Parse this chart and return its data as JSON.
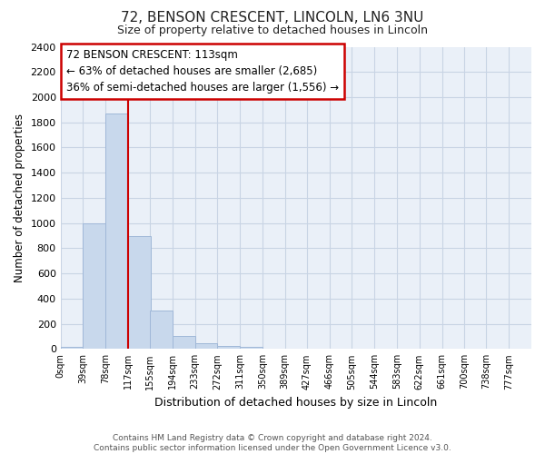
{
  "title": "72, BENSON CRESCENT, LINCOLN, LN6 3NU",
  "subtitle": "Size of property relative to detached houses in Lincoln",
  "xlabel": "Distribution of detached houses by size in Lincoln",
  "ylabel": "Number of detached properties",
  "bin_edges": [
    0,
    39,
    78,
    117,
    155,
    194,
    233,
    272,
    311,
    350,
    389,
    427,
    466,
    505,
    544,
    583,
    622,
    661,
    700,
    738,
    777
  ],
  "bar_heights": [
    20,
    1000,
    1870,
    900,
    305,
    100,
    45,
    25,
    20,
    0,
    0,
    0,
    0,
    0,
    0,
    0,
    0,
    0,
    0,
    0
  ],
  "bar_color": "#c8d8ec",
  "bar_edge_color": "#a0b8d8",
  "grid_color": "#c8d4e4",
  "vline_x": 117,
  "vline_color": "#cc0000",
  "annotation_text": "72 BENSON CRESCENT: 113sqm\n← 63% of detached houses are smaller (2,685)\n36% of semi-detached houses are larger (1,556) →",
  "annotation_box_color": "#cc0000",
  "annotation_text_color": "#000000",
  "ylim": [
    0,
    2400
  ],
  "yticks": [
    0,
    200,
    400,
    600,
    800,
    1000,
    1200,
    1400,
    1600,
    1800,
    2000,
    2200,
    2400
  ],
  "tick_labels": [
    "0sqm",
    "39sqm",
    "78sqm",
    "117sqm",
    "155sqm",
    "194sqm",
    "233sqm",
    "272sqm",
    "311sqm",
    "350sqm",
    "389sqm",
    "427sqm",
    "466sqm",
    "505sqm",
    "544sqm",
    "583sqm",
    "622sqm",
    "661sqm",
    "700sqm",
    "738sqm",
    "777sqm"
  ],
  "footer": "Contains HM Land Registry data © Crown copyright and database right 2024.\nContains public sector information licensed under the Open Government Licence v3.0.",
  "plot_bg_color": "#eaf0f8",
  "fig_bg_color": "#ffffff"
}
